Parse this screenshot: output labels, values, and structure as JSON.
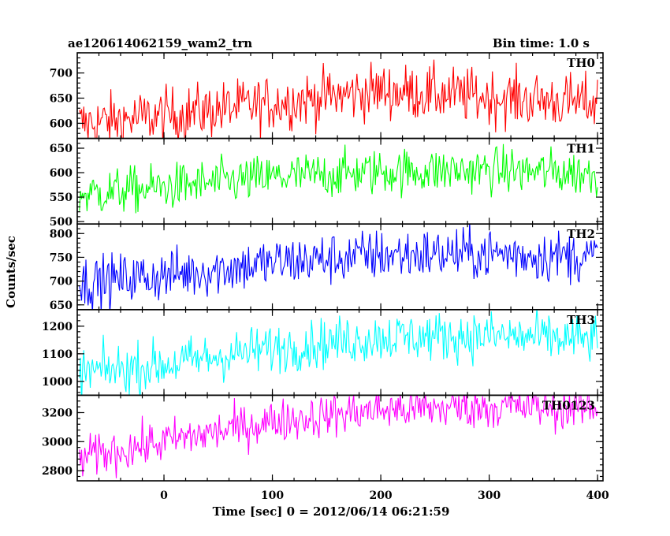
{
  "chart_data": {
    "type": "line",
    "title": "ae120614062159_wam2_trn",
    "bin_time_label": "Bin time: 1.0 s",
    "xlabel": "Time [sec] 0 = 2012/06/14 06:21:59",
    "ylabel": "Counts/sec",
    "xlim": [
      -80,
      405
    ],
    "xticks": [
      0,
      100,
      200,
      300,
      400
    ],
    "xtick_labels": [
      "0",
      "100",
      "200",
      "300",
      "400"
    ],
    "panels": [
      {
        "name": "TH0",
        "color": "#ff0000",
        "ylim": [
          570,
          740
        ],
        "yticks": [
          600,
          650,
          700
        ],
        "ytick_labels": [
          "600",
          "650",
          "700"
        ],
        "trend": [
          [
            -80,
            598
          ],
          [
            0,
            615
          ],
          [
            100,
            640
          ],
          [
            200,
            665
          ],
          [
            300,
            652
          ],
          [
            400,
            640
          ]
        ],
        "noise": 28
      },
      {
        "name": "TH1",
        "color": "#00ff00",
        "ylim": [
          495,
          670
        ],
        "yticks": [
          500,
          550,
          600,
          650
        ],
        "ytick_labels": [
          "500",
          "550",
          "600",
          "650"
        ],
        "trend": [
          [
            -80,
            555
          ],
          [
            0,
            570
          ],
          [
            100,
            590
          ],
          [
            200,
            602
          ],
          [
            300,
            605
          ],
          [
            400,
            598
          ]
        ],
        "noise": 24
      },
      {
        "name": "TH2",
        "color": "#0000ff",
        "ylim": [
          640,
          820
        ],
        "yticks": [
          650,
          700,
          750,
          800
        ],
        "ytick_labels": [
          "650",
          "700",
          "750",
          "800"
        ],
        "trend": [
          [
            -80,
            695
          ],
          [
            0,
            712
          ],
          [
            100,
            738
          ],
          [
            200,
            755
          ],
          [
            300,
            758
          ],
          [
            400,
            750
          ]
        ],
        "noise": 28
      },
      {
        "name": "TH3",
        "color": "#00ffff",
        "ylim": [
          950,
          1260
        ],
        "yticks": [
          1000,
          1100,
          1200
        ],
        "ytick_labels": [
          "1000",
          "1100",
          "1200"
        ],
        "trend": [
          [
            -80,
            1030
          ],
          [
            0,
            1060
          ],
          [
            100,
            1120
          ],
          [
            200,
            1160
          ],
          [
            300,
            1165
          ],
          [
            400,
            1150
          ]
        ],
        "noise": 45
      },
      {
        "name": "TH0123",
        "color": "#ff00ff",
        "ylim": [
          2730,
          3320
        ],
        "yticks": [
          2800,
          3000,
          3200
        ],
        "ytick_labels": [
          "2800",
          "3000",
          "3200"
        ],
        "trend": [
          [
            -80,
            2880
          ],
          [
            0,
            3000
          ],
          [
            100,
            3140
          ],
          [
            200,
            3220
          ],
          [
            300,
            3240
          ],
          [
            400,
            3230
          ]
        ],
        "noise": 75
      }
    ]
  }
}
